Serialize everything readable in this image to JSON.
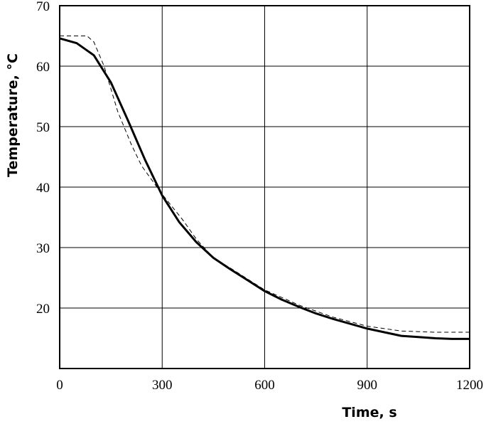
{
  "chart_data": {
    "type": "line",
    "title": "",
    "xlabel": "Time, s",
    "ylabel": "Temperature, °C",
    "xlim": [
      0,
      1200
    ],
    "ylim": [
      10,
      70
    ],
    "x_ticks": [
      0,
      300,
      600,
      900,
      1200
    ],
    "y_ticks": [
      20,
      30,
      40,
      50,
      60,
      70
    ],
    "grid": true,
    "legend": "none",
    "series": [
      {
        "style": "solid",
        "x": [
          0,
          50,
          100,
          150,
          200,
          250,
          300,
          350,
          400,
          450,
          500,
          550,
          600,
          650,
          700,
          750,
          800,
          850,
          900,
          950,
          1000,
          1050,
          1100,
          1150,
          1200
        ],
        "y": [
          64.6,
          63.8,
          61.8,
          57.3,
          51.0,
          44.5,
          38.6,
          34.2,
          30.9,
          28.3,
          26.4,
          24.6,
          22.8,
          21.4,
          20.2,
          19.1,
          18.2,
          17.4,
          16.6,
          16.0,
          15.4,
          15.2,
          15.0,
          14.9,
          14.9
        ]
      },
      {
        "style": "dashed",
        "x": [
          0,
          40,
          80,
          100,
          130,
          170,
          210,
          240,
          300,
          360,
          400,
          450,
          500,
          600,
          700,
          800,
          900,
          1000,
          1100,
          1200
        ],
        "y": [
          65.0,
          65.0,
          65.0,
          64.0,
          60.0,
          52.5,
          47.0,
          43.5,
          38.8,
          34.6,
          31.4,
          28.3,
          26.6,
          23.0,
          20.5,
          18.5,
          17.0,
          16.2,
          16.0,
          16.0
        ]
      }
    ]
  }
}
